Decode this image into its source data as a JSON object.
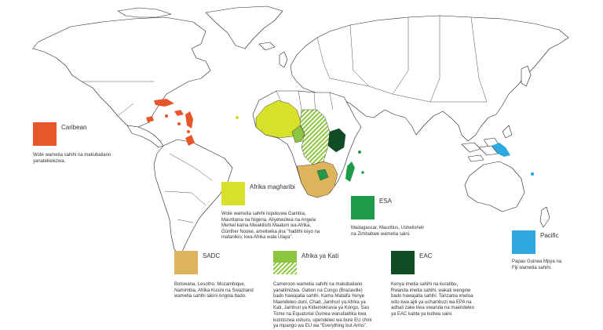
{
  "colors": {
    "caribean": "#e8572a",
    "afrika_magharibi": "#d7e02b",
    "esa": "#1f9a4a",
    "sadc": "#ddb45c",
    "afrika_ya_kati": "#8cc63e",
    "eac": "#0f4d24",
    "pacific": "#2ea9e0"
  },
  "legend": {
    "caribean": {
      "title": "Caribean",
      "text": [
        "Wote wametia sahihi na makubaliano",
        "yanatekelezwa."
      ]
    },
    "afrika_magharibi": {
      "title": "Afrika magharibi",
      "text": [
        "Wote wametia sahihi isipokuwa Gambia,",
        "Mauritania na Nigeria. Aliyeteuliwa na Angela",
        "Merkel kama Mwakilishi Maalum wa Afrika,",
        "Günther Nooke, ameitwika jina \"hadithi isiyo na",
        "mafanikio, kwa Afrika wala Ulaya\"."
      ]
    },
    "esa": {
      "title": "ESA",
      "text": [
        "Madagascar, Mauritius, Ushelisheli",
        "na Zimbabwe wametia saini."
      ]
    },
    "pacific": {
      "title": "Pacific",
      "text": [
        "Papau Guinea Mpya na",
        "Fiji wametia sahihi."
      ]
    },
    "sadc": {
      "title": "SADC",
      "text": [
        "Botswana, Lesotho, Mozambique,",
        "Namimbia, Afrika Kusini na Swaziland",
        "wametia sahihi lakini Angola bado."
      ]
    },
    "afrika_ya_kati": {
      "title": "Afrika ya Kati",
      "text": [
        "Cameroon wametia sahihi na makubaliano",
        "yanatimizwa. Gabon na Congo (Brazaville)",
        "bado hawajatia sahihi. Kama Mataifa Yenye",
        "Maendeleo duni, Chad, Jamhuri ya Afrika ya",
        "Kati, Jamhuri ya Kidemokrasia ya Kongo, Sao",
        "Tome na Equatorial Guinea wanafaidika kwa",
        "kutotozwa ushuru, upendeleo wa bure EU chini",
        "ya mpango wa EU wa \"Everything but Arms\"."
      ]
    },
    "eac": {
      "title": "EAC",
      "text": [
        "Kenya imetia sahihi na kuratibu,",
        "Rwanda imetia sahihi, wakati wengine",
        "bado hawajatia sahihi. Tanzania imetoa",
        "wito kwa ajili ya uchambuzi wa EPA na",
        "adhali zake kwa viwanda na maendeleo",
        "ya EAC kabla ya kutiwa saini."
      ]
    }
  }
}
